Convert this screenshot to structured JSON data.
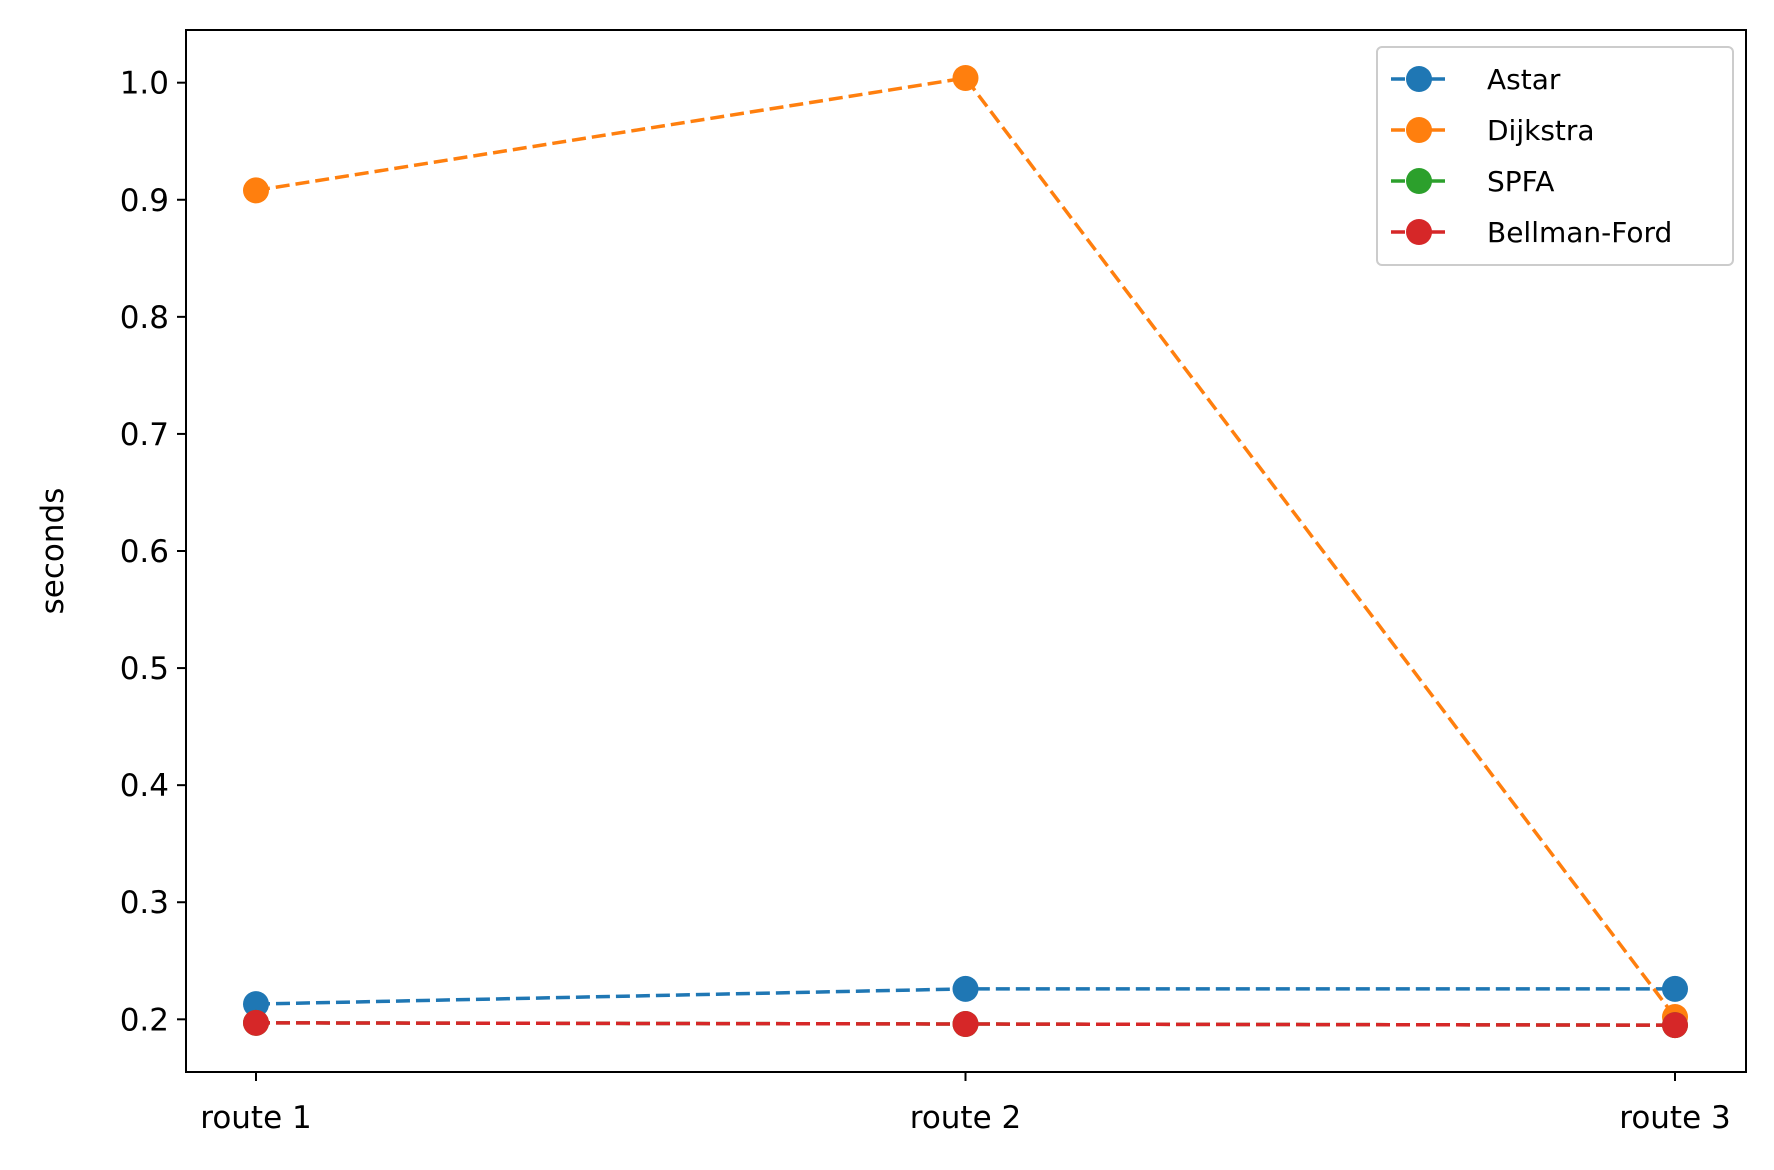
{
  "chart_data": {
    "type": "line",
    "categories": [
      "route 1",
      "route 2",
      "route 3"
    ],
    "ylabel": "seconds",
    "xlabel": "",
    "ylim": [
      0.155,
      1.045
    ],
    "yticks": [
      0.2,
      0.3,
      0.4,
      0.5,
      0.6,
      0.7,
      0.8,
      0.9,
      1.0
    ],
    "ytick_labels": [
      "0.2",
      "0.3",
      "0.4",
      "0.5",
      "0.6",
      "0.7",
      "0.8",
      "0.9",
      "1.0"
    ],
    "grid": false,
    "legend_position": "top-right",
    "line_style": "dashed",
    "marker": "circle",
    "series": [
      {
        "name": "Astar",
        "color": "#1f77b4",
        "values": [
          0.213,
          0.226,
          0.226
        ]
      },
      {
        "name": "Dijkstra",
        "color": "#ff7f0e",
        "values": [
          0.908,
          1.004,
          0.202
        ]
      },
      {
        "name": "SPFA",
        "color": "#2ca02c",
        "values": [
          0.197,
          0.196,
          0.195
        ]
      },
      {
        "name": "Bellman-Ford",
        "color": "#d62728",
        "values": [
          0.197,
          0.196,
          0.195
        ]
      }
    ]
  }
}
